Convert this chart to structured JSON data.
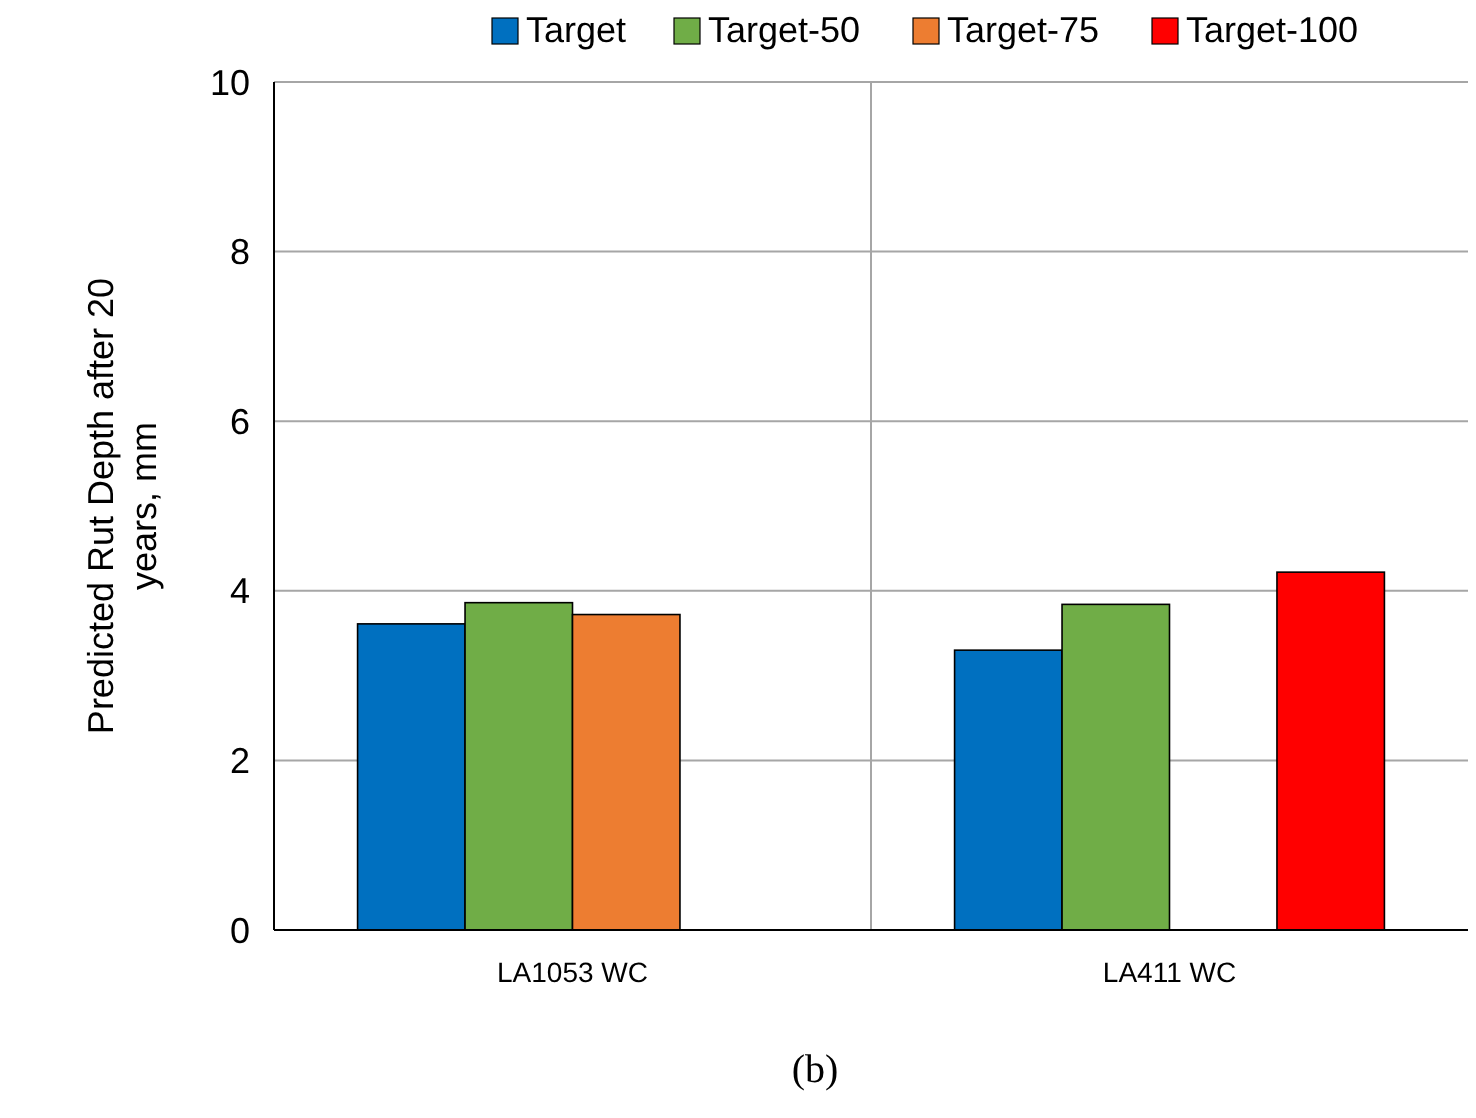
{
  "chart_data": {
    "type": "bar",
    "ylabel": "Predicted Rut Depth after 20 years, mm",
    "categories": [
      "LA1053 WC",
      "LA411 WC"
    ],
    "series": [
      {
        "name": "Target",
        "color": "#0070c0",
        "values": [
          3.61,
          3.3
        ]
      },
      {
        "name": "Target-50",
        "color": "#70ad47",
        "values": [
          3.86,
          3.84
        ]
      },
      {
        "name": "Target-75",
        "color": "#ed7d31",
        "values": [
          3.72,
          null
        ]
      },
      {
        "name": "Target-100",
        "color": "#ff0000",
        "values": [
          null,
          4.22
        ]
      }
    ],
    "ylim": [
      0,
      10
    ],
    "yticks": [
      0,
      2,
      4,
      6,
      8,
      10
    ],
    "grid": true,
    "legend": "top",
    "annotations": [
      "(b)"
    ]
  }
}
